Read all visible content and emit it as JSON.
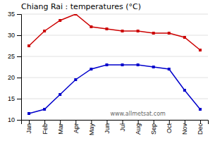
{
  "chart_data": {
    "type": "line",
    "title": "Chiang Rai : temperatures (°C)",
    "categories": [
      "Jan",
      "Feb",
      "Mar",
      "Apr",
      "May",
      "Jun",
      "Jul",
      "Aug",
      "Sep",
      "Oct",
      "Nov",
      "Dec"
    ],
    "series": [
      {
        "color": "#cc0000",
        "marker": "square",
        "values": [
          27.5,
          31.0,
          33.5,
          35.0,
          32.0,
          31.5,
          31.0,
          31.0,
          30.5,
          30.5,
          29.5,
          26.5
        ]
      },
      {
        "color": "#0000cc",
        "marker": "square",
        "values": [
          11.5,
          12.5,
          16.0,
          19.5,
          22.0,
          23.0,
          23.0,
          23.0,
          22.5,
          22.0,
          17.0,
          12.5
        ]
      }
    ],
    "ylim": [
      10,
      35
    ],
    "yticks": [
      10,
      15,
      20,
      25,
      30,
      35
    ],
    "grid": true,
    "annotations": [
      "www.allmetsat.com"
    ]
  }
}
